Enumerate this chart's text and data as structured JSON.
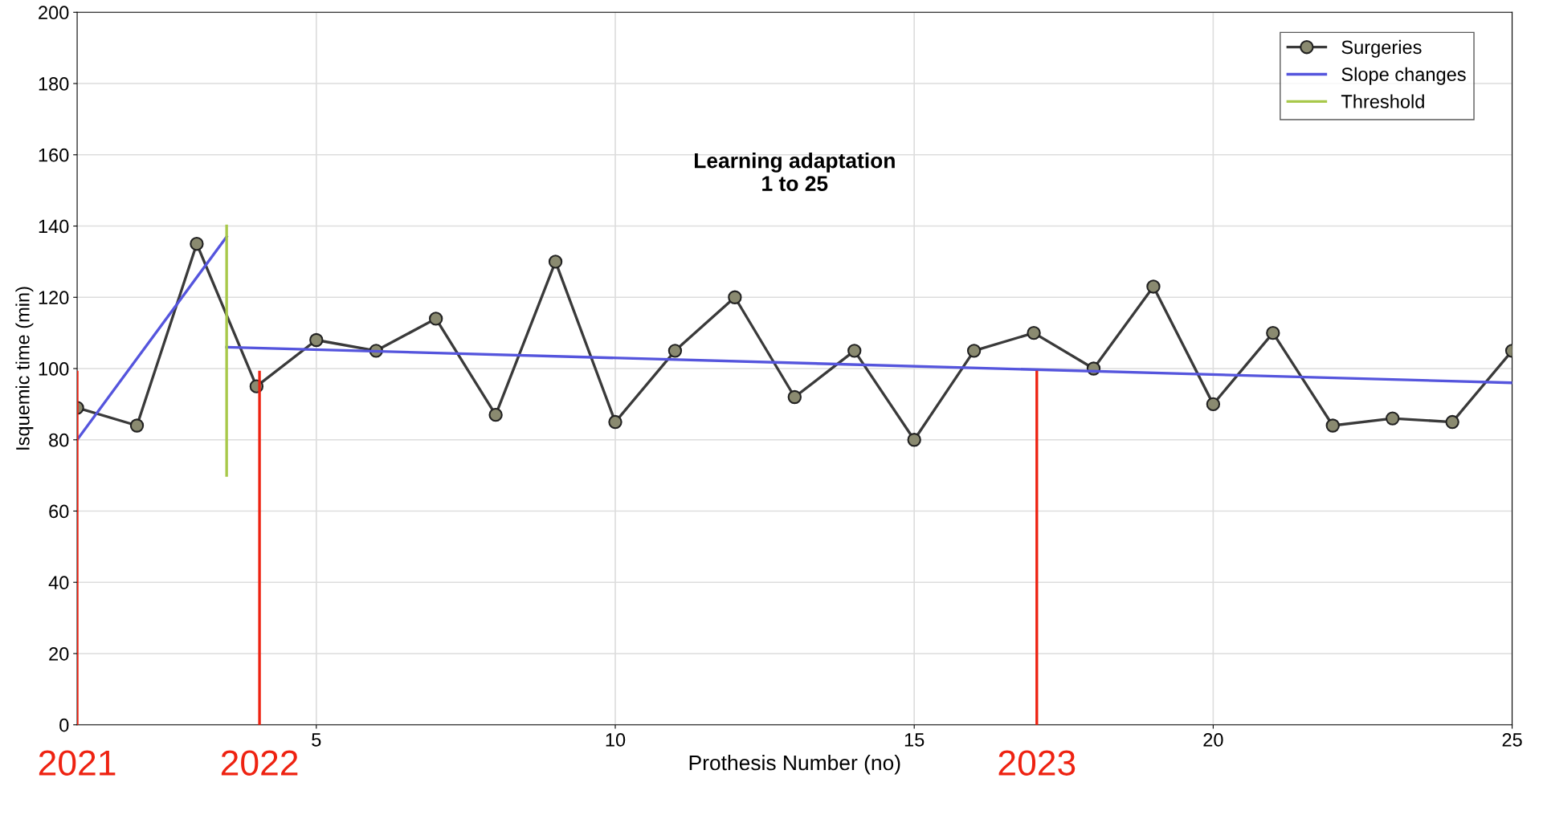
{
  "chart_data": {
    "type": "line",
    "title": "Learning adaptation\n1 to 25",
    "xlabel": "Prothesis Number (no)",
    "ylabel": "Isquemic time (min)",
    "xlim": [
      1,
      25
    ],
    "xticks": [
      5,
      10,
      15,
      20,
      25
    ],
    "ylim": [
      0,
      200
    ],
    "yticks": [
      0,
      20,
      40,
      60,
      80,
      100,
      120,
      140,
      160,
      180,
      200
    ],
    "grid": true,
    "legend": "top right",
    "series": [
      {
        "name": "Surgeries",
        "color": "#3a3a3a",
        "marker": "circle",
        "x": [
          1,
          2,
          3,
          4,
          5,
          6,
          7,
          8,
          9,
          10,
          11,
          12,
          13,
          14,
          15,
          16,
          17,
          18,
          19,
          20,
          21,
          22,
          23,
          24,
          25
        ],
        "values": [
          89,
          84,
          135,
          95,
          108,
          105,
          114,
          87,
          130,
          85,
          105,
          120,
          92,
          105,
          80,
          105,
          110,
          100,
          123,
          90,
          110,
          84,
          86,
          85,
          105
        ]
      },
      {
        "name": "Slope changes",
        "color": "#5555dd",
        "marker": "none",
        "x": [
          1,
          3.5
        ],
        "values": [
          80,
          137
        ]
      },
      {
        "color": "#5555dd",
        "marker": "none",
        "x": [
          3.5,
          25
        ],
        "values": [
          106,
          96
        ]
      },
      {
        "name": "Threshold",
        "color": "#a8c84a",
        "marker": "none",
        "x": [
          3.5,
          3.5
        ],
        "values": [
          70,
          140
        ]
      },
      {
        "color": "#ee2211",
        "marker": "none",
        "x": [
          1,
          1
        ],
        "values": [
          0,
          99
        ]
      },
      {
        "color": "#ee2211",
        "marker": "none",
        "x": [
          4.05,
          4.05
        ],
        "values": [
          0,
          99
        ]
      },
      {
        "color": "#ee2211",
        "marker": "none",
        "x": [
          17.05,
          17.05
        ],
        "values": [
          0,
          99
        ]
      }
    ],
    "annotations": [
      {
        "text": "2021",
        "x": 1,
        "y": 0
      },
      {
        "text": "2022",
        "x": 4.05,
        "y": 0
      },
      {
        "text": "2023",
        "x": 17.05,
        "y": 0
      }
    ]
  }
}
